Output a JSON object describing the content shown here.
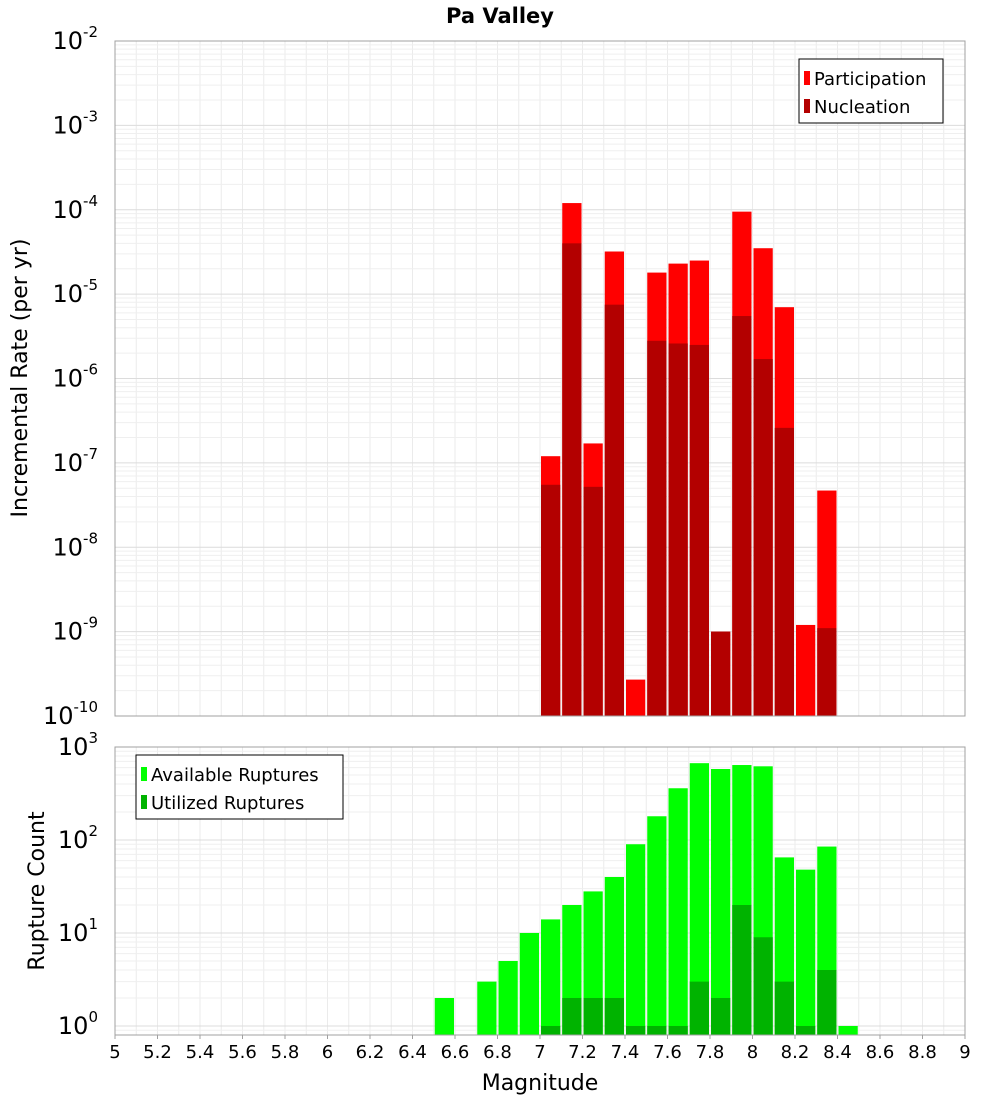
{
  "chart_data": [
    {
      "type": "bar",
      "title": "Pa Valley",
      "ylabel": "Incremental Rate (per yr)",
      "xlabel": "",
      "yscale": "log",
      "ylim": [
        1e-10,
        0.01
      ],
      "xlim": [
        5,
        9
      ],
      "legend_position": "top-right",
      "bin_width": 0.1,
      "x": [
        7.05,
        7.15,
        7.25,
        7.35,
        7.45,
        7.55,
        7.65,
        7.75,
        7.85,
        7.95,
        8.05,
        8.15,
        8.25,
        8.35
      ],
      "series": [
        {
          "name": "Participation",
          "color": "#ff0000",
          "values": [
            1.2e-07,
            0.00012,
            1.7e-07,
            3.2e-05,
            2.7e-10,
            1.8e-05,
            2.3e-05,
            2.5e-05,
            1e-09,
            9.5e-05,
            3.5e-05,
            7e-06,
            1.2e-09,
            4.7e-08
          ]
        },
        {
          "name": "Nucleation",
          "color": "#b30000",
          "values": [
            5.5e-08,
            4e-05,
            5.2e-08,
            7.5e-06,
            null,
            2.8e-06,
            2.6e-06,
            2.5e-06,
            1e-09,
            5.5e-06,
            1.7e-06,
            2.6e-07,
            null,
            1.1e-09
          ]
        }
      ]
    },
    {
      "type": "bar",
      "title": "",
      "ylabel": "Rupture Count",
      "xlabel": "Magnitude",
      "yscale": "log",
      "ylim": [
        0.8,
        1000
      ],
      "xlim": [
        5,
        9
      ],
      "legend_position": "top-left",
      "bin_width": 0.1,
      "x": [
        6.55,
        6.65,
        6.75,
        6.85,
        6.95,
        7.05,
        7.15,
        7.25,
        7.35,
        7.45,
        7.55,
        7.65,
        7.75,
        7.85,
        7.95,
        8.05,
        8.15,
        8.25,
        8.35,
        8.45
      ],
      "series": [
        {
          "name": "Available Ruptures",
          "color": "#00ff00",
          "values": [
            2,
            null,
            3,
            5,
            10,
            14,
            20,
            28,
            40,
            90,
            180,
            360,
            670,
            580,
            640,
            620,
            65,
            48,
            85,
            1
          ]
        },
        {
          "name": "Utilized Ruptures",
          "color": "#00b300",
          "values": [
            null,
            null,
            null,
            null,
            null,
            1,
            2,
            2,
            2,
            1,
            1,
            1,
            3,
            2,
            20,
            9,
            3,
            1,
            4,
            null
          ]
        }
      ],
      "x_ticks": [
        "5",
        "5.2",
        "5.4",
        "5.6",
        "5.8",
        "6",
        "6.2",
        "6.4",
        "6.6",
        "6.8",
        "7",
        "7.2",
        "7.4",
        "7.6",
        "7.8",
        "8",
        "8.2",
        "8.4",
        "8.6",
        "8.8",
        "9"
      ]
    }
  ]
}
